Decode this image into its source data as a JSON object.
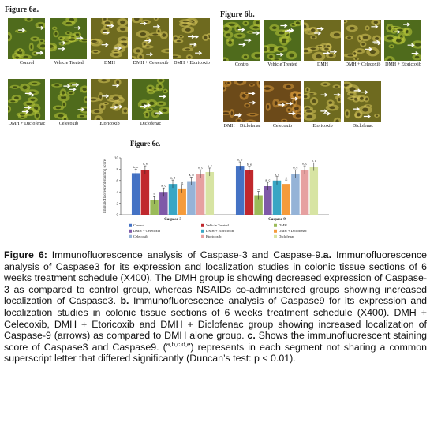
{
  "figure_a": {
    "label": "Figure 6a.",
    "tiles": [
      {
        "caption": "Control",
        "tone": "green"
      },
      {
        "caption": "Vehicle Treated",
        "tone": "green"
      },
      {
        "caption": "DMH",
        "tone": "olive"
      },
      {
        "caption": "DMH + Celecoxib",
        "tone": "olive"
      },
      {
        "caption": "DMH + Etoricoxib",
        "tone": "olive"
      },
      {
        "caption": "DMH + Diclofenac",
        "tone": "green"
      },
      {
        "caption": "Celecoxib",
        "tone": "green"
      },
      {
        "caption": "Etoricoxib",
        "tone": "olive"
      },
      {
        "caption": "Diclofenac",
        "tone": "green"
      }
    ]
  },
  "figure_b": {
    "label": "Figure 6b.",
    "tiles": [
      {
        "caption": "Control",
        "tone": "green"
      },
      {
        "caption": "Vehicle Treated",
        "tone": "green"
      },
      {
        "caption": "DMH",
        "tone": "olive"
      },
      {
        "caption": "DMH + Celecoxib",
        "tone": "olive"
      },
      {
        "caption": "DMH + Etoricoxib",
        "tone": "green"
      },
      {
        "caption": "DMH + Diclofenac",
        "tone": "brown"
      },
      {
        "caption": "Celecoxib",
        "tone": "brown"
      },
      {
        "caption": "Etoricoxib",
        "tone": "olive"
      },
      {
        "caption": "Diclofenac",
        "tone": "olive"
      }
    ]
  },
  "figure_c_label": "Figure 6c.",
  "chart_data": {
    "type": "bar",
    "categories": [
      "Caspase-3",
      "Caspase-9"
    ],
    "ylabel": "Immunofluorescent staining score",
    "ylim": [
      0,
      10
    ],
    "yticks": [
      "0",
      "2",
      "4",
      "6",
      "8",
      "10"
    ],
    "grid": false,
    "legend_position": "bottom",
    "series": [
      {
        "name": "Control",
        "values": [
          7.3,
          8.6
        ],
        "labels": [
          "b, e",
          "b, e"
        ]
      },
      {
        "name": "Vehicle Treated",
        "values": [
          7.9,
          7.8
        ],
        "labels": [
          "b, e",
          "b, e"
        ]
      },
      {
        "name": "DMH",
        "values": [
          2.6,
          3.4
        ],
        "labels": [
          "a",
          "a"
        ]
      },
      {
        "name": "DMH + Celecoxib",
        "values": [
          4.0,
          5.0
        ],
        "labels": [
          "a, c",
          "a, c"
        ]
      },
      {
        "name": "DMH + Etoricoxib",
        "values": [
          5.4,
          6.0
        ],
        "labels": [
          "a, d",
          "a, d"
        ]
      },
      {
        "name": "DMH + Diclofenac",
        "values": [
          4.6,
          5.4
        ],
        "labels": [
          "a",
          "a"
        ]
      },
      {
        "name": "Celecoxib",
        "values": [
          5.9,
          7.2
        ],
        "labels": [
          "a, b",
          "b, c"
        ]
      },
      {
        "name": "Etoricoxib",
        "values": [
          7.2,
          7.9
        ],
        "labels": [
          "b, c",
          "b, c"
        ]
      },
      {
        "name": "Diclofenac",
        "values": [
          7.5,
          8.4
        ],
        "labels": [
          "b, c",
          "b, c"
        ]
      }
    ],
    "colors": [
      "#4472c4",
      "#c0282d",
      "#9bbb59",
      "#7f59a8",
      "#39a6c4",
      "#f59b3b",
      "#95b3d7",
      "#e6a0a0",
      "#d7e4a3"
    ]
  },
  "caption": {
    "lead": "Figure 6:",
    "p1": " Immunofluorescence analysis of Caspase-3 and Caspase-9.",
    "a_marker": "a.",
    "p2": " Immunofluorescence analysis of Caspase3 for its expression and localization studies in colonic tissue sections of 6 weeks treatment schedule (X400). The DMH group is showing decreased expression of Caspase-3 as compared to control group, whereas NSAIDs co-administered groups showing increased localization of Caspase3. ",
    "b_marker": "b.",
    "p3": " Immunofluorescence analysis of Caspase9 for its expression and localization studies in colonic tissue sections of 6 weeks treatment schedule (X400). DMH + Celecoxib, DMH + Etoricoxib and DMH + Diclofenac group showing increased localization of Caspase-9 (arrows) as compared to DMH alone group. ",
    "c_marker": "c.",
    "p4": " Shows the immunofluorescent staining score of Caspase3 and Caspase9. (",
    "sup": "a,b,c,d,e",
    "p5": ") represents in each segment not sharing a common superscript letter that differed significantly (Duncan’s test: p < 0.01)."
  }
}
